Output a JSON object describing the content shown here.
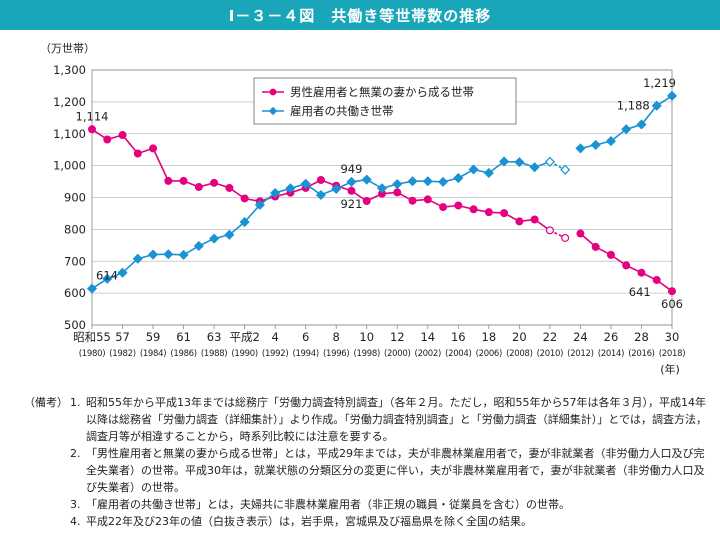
{
  "title": "Ⅰ－３－４図　共働き等世帯数の推移",
  "chart_data": {
    "type": "line",
    "ylabel": "（万世帯）",
    "xlabel": "(年)",
    "ylim": [
      500,
      1300
    ],
    "yticks": [
      "500",
      "600",
      "700",
      "800",
      "900",
      "1,000",
      "1,100",
      "1,200",
      "1,300"
    ],
    "xticks": [
      {
        "year": 1980,
        "top": "昭和55",
        "bottom": "(1980)"
      },
      {
        "year": 1982,
        "top": "57",
        "bottom": "(1982)"
      },
      {
        "year": 1984,
        "top": "59",
        "bottom": "(1984)"
      },
      {
        "year": 1986,
        "top": "61",
        "bottom": "(1986)"
      },
      {
        "year": 1988,
        "top": "63",
        "bottom": "(1988)"
      },
      {
        "year": 1990,
        "top": "平成2",
        "bottom": "(1990)"
      },
      {
        "year": 1992,
        "top": "4",
        "bottom": "(1992)"
      },
      {
        "year": 1994,
        "top": "6",
        "bottom": "(1994)"
      },
      {
        "year": 1996,
        "top": "8",
        "bottom": "(1996)"
      },
      {
        "year": 1998,
        "top": "10",
        "bottom": "(1998)"
      },
      {
        "year": 2000,
        "top": "12",
        "bottom": "(2000)"
      },
      {
        "year": 2002,
        "top": "14",
        "bottom": "(2002)"
      },
      {
        "year": 2004,
        "top": "16",
        "bottom": "(2004)"
      },
      {
        "year": 2006,
        "top": "18",
        "bottom": "(2006)"
      },
      {
        "year": 2008,
        "top": "20",
        "bottom": "(2008)"
      },
      {
        "year": 2010,
        "top": "22",
        "bottom": "(2010)"
      },
      {
        "year": 2012,
        "top": "24",
        "bottom": "(2012)"
      },
      {
        "year": 2014,
        "top": "26",
        "bottom": "(2014)"
      },
      {
        "year": 2016,
        "top": "28",
        "bottom": "(2016)"
      },
      {
        "year": 2018,
        "top": "30",
        "bottom": "(2018)"
      }
    ],
    "x": [
      1980,
      1981,
      1982,
      1983,
      1984,
      1985,
      1986,
      1987,
      1988,
      1989,
      1990,
      1991,
      1992,
      1993,
      1994,
      1995,
      1996,
      1997,
      1998,
      1999,
      2000,
      2001,
      2002,
      2003,
      2004,
      2005,
      2006,
      2007,
      2008,
      2009,
      2010,
      2011,
      2012,
      2013,
      2014,
      2015,
      2016,
      2017,
      2018
    ],
    "hollow_years": [
      2010,
      2011
    ],
    "gap_after": 2011,
    "grid": true,
    "legend_position": "top-center",
    "series": [
      {
        "name": "男性雇用者と無業の妻から成る世帯",
        "color": "#e4007f",
        "marker": "circle",
        "values": [
          1114,
          1082,
          1096,
          1038,
          1054,
          952,
          952,
          933,
          946,
          930,
          897,
          888,
          903,
          915,
          930,
          955,
          937,
          921,
          889,
          912,
          916,
          890,
          894,
          870,
          875,
          863,
          854,
          851,
          825,
          831,
          797,
          773,
          787,
          745,
          720,
          687,
          664,
          641,
          606
        ]
      },
      {
        "name": "雇用者の共働き世帯",
        "color": "#1a92d3",
        "marker": "diamond",
        "values": [
          614,
          645,
          664,
          708,
          721,
          722,
          720,
          748,
          771,
          783,
          823,
          877,
          914,
          929,
          943,
          908,
          927,
          949,
          956,
          929,
          942,
          951,
          951,
          949,
          961,
          988,
          977,
          1013,
          1011,
          995,
          1012,
          987,
          1054,
          1065,
          1077,
          1114,
          1129,
          1188,
          1219
        ]
      }
    ],
    "annotations": [
      {
        "series": 0,
        "year": 1980,
        "text": "1,114",
        "pos": "above"
      },
      {
        "series": 1,
        "year": 1980,
        "text": "614",
        "pos": "above-right"
      },
      {
        "series": 1,
        "year": 1997,
        "text": "949",
        "pos": "above"
      },
      {
        "series": 0,
        "year": 1997,
        "text": "921",
        "pos": "below"
      },
      {
        "series": 1,
        "year": 2017,
        "text": "1,188",
        "pos": "left"
      },
      {
        "series": 1,
        "year": 2018,
        "text": "1,219",
        "pos": "above"
      },
      {
        "series": 0,
        "year": 2017,
        "text": "641",
        "pos": "below-left"
      },
      {
        "series": 0,
        "year": 2018,
        "text": "606",
        "pos": "below"
      }
    ]
  },
  "notes_tag": "（備考）",
  "notes": [
    {
      "num": "1.",
      "text": "昭和55年から平成13年までは総務庁「労働力調査特別調査」（各年２月。ただし，昭和55年から57年は各年３月），平成14年以降は総務省「労働力調査（詳細集計）」より作成。「労働力調査特別調査」と「労働力調査（詳細集計）」とでは，調査方法，調査月等が相違することから，時系列比較には注意を要する。"
    },
    {
      "num": "2.",
      "text": "「男性雇用者と無業の妻から成る世帯」とは，平成29年までは，夫が非農林業雇用者で，妻が非就業者（非労働力人口及び完全失業者）の世帯。平成30年は，就業状態の分類区分の変更に伴い，夫が非農林業雇用者で，妻が非就業者（非労働力人口及び失業者）の世帯。"
    },
    {
      "num": "3.",
      "text": "「雇用者の共働き世帯」とは，夫婦共に非農林業雇用者（非正規の職員・従業員を含む）の世帯。"
    },
    {
      "num": "4.",
      "text": "平成22年及び23年の値（白抜き表示）は，岩手県，宮城県及び福島県を除く全国の結果。"
    }
  ]
}
